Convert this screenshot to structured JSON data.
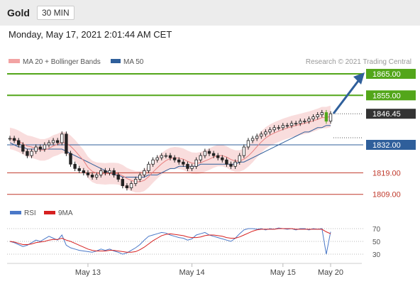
{
  "header": {
    "title": "Gold",
    "timeframe": "30 MIN"
  },
  "datetime": "Monday, May 17, 2021 2:01:44 AM CET",
  "legend": {
    "ma_boll": "MA 20 + Bollinger Bands",
    "ma50": "MA 50",
    "credit": "Research © 2021 Trading Central",
    "rsi": "RSI",
    "nine_ma": "9MA"
  },
  "colors": {
    "green": "#53a61a",
    "blue": "#2f5f9b",
    "red": "#c0392b",
    "band": "#f7d4d4",
    "candle": "#222222"
  },
  "chart_data": [
    {
      "type": "candlestick",
      "x_labels": [
        "May 13",
        "May 14",
        "May 15",
        "May 20"
      ],
      "levels": [
        {
          "label": "1865.00",
          "value": 1865.0,
          "color": "#53a61a"
        },
        {
          "label": "1855.00",
          "value": 1855.0,
          "color": "#53a61a"
        },
        {
          "label": "1846.45",
          "value": 1846.45,
          "color": "#333333",
          "current": true
        },
        {
          "label": "1832.00",
          "value": 1832.0,
          "color": "#2f5f9b"
        },
        {
          "label": "1819.00",
          "value": 1819.0,
          "color": "#c0392b"
        },
        {
          "label": "1809.00",
          "value": 1809.0,
          "color": "#c0392b"
        }
      ],
      "close": [
        1835,
        1834,
        1832,
        1829,
        1827,
        1829,
        1831,
        1830,
        1832,
        1833,
        1834,
        1833,
        1837,
        1828,
        1823,
        1821,
        1820,
        1819,
        1818,
        1817,
        1818,
        1820,
        1819,
        1820,
        1818,
        1816,
        1813,
        1812,
        1814,
        1816,
        1818,
        1820,
        1823,
        1825,
        1826,
        1827,
        1827,
        1826,
        1825,
        1824,
        1823,
        1821,
        1822,
        1825,
        1827,
        1829,
        1828,
        1827,
        1826,
        1825,
        1823,
        1822,
        1824,
        1827,
        1831,
        1834,
        1835,
        1836,
        1837,
        1838,
        1839,
        1840,
        1840,
        1841,
        1841,
        1842,
        1842,
        1843,
        1843,
        1844,
        1845,
        1846,
        1847,
        1843,
        1846.45
      ],
      "ma50": [
        1833,
        1832,
        1831,
        1831,
        1830,
        1830,
        1830,
        1830,
        1830,
        1830,
        1830,
        1830,
        1830,
        1829,
        1828,
        1827,
        1826,
        1825,
        1824,
        1823,
        1822,
        1821,
        1820,
        1819,
        1818,
        1818,
        1817,
        1817,
        1817,
        1817,
        1817,
        1817,
        1818,
        1818,
        1818,
        1819,
        1820,
        1821,
        1821,
        1822,
        1822,
        1822,
        1822,
        1822,
        1823,
        1823,
        1823,
        1823,
        1823,
        1823,
        1823,
        1823,
        1823,
        1824,
        1824,
        1825,
        1826,
        1827,
        1828,
        1829,
        1830,
        1831,
        1832,
        1833,
        1834,
        1835,
        1836,
        1837,
        1838,
        1838,
        1839,
        1840,
        1840,
        1841,
        1841
      ],
      "rsi_levels": [
        70,
        50,
        30
      ],
      "rsi": [
        50,
        48,
        45,
        42,
        44,
        48,
        52,
        50,
        54,
        58,
        55,
        52,
        60,
        44,
        40,
        38,
        36,
        35,
        34,
        33,
        35,
        38,
        36,
        38,
        35,
        33,
        30,
        32,
        36,
        40,
        45,
        52,
        58,
        60,
        62,
        64,
        63,
        60,
        58,
        56,
        55,
        52,
        54,
        60,
        62,
        64,
        60,
        58,
        56,
        54,
        52,
        50,
        55,
        62,
        68,
        70,
        70,
        69,
        70,
        68,
        70,
        69,
        71,
        70,
        69,
        70,
        68,
        70,
        70,
        68,
        70,
        69,
        70,
        30,
        65
      ],
      "rsi_9ma": [
        50,
        49,
        47,
        45,
        45,
        46,
        48,
        49,
        50,
        52,
        53,
        53,
        55,
        52,
        50,
        47,
        44,
        41,
        38,
        36,
        35,
        35,
        35,
        36,
        36,
        35,
        34,
        33,
        33,
        34,
        37,
        41,
        46,
        51,
        55,
        59,
        61,
        62,
        61,
        60,
        59,
        57,
        56,
        56,
        57,
        59,
        60,
        60,
        59,
        58,
        56,
        55,
        55,
        57,
        60,
        63,
        66,
        68,
        69,
        69,
        69,
        69,
        70,
        70,
        70,
        70,
        69,
        69,
        69,
        69,
        69,
        69,
        69,
        65,
        62
      ]
    }
  ]
}
